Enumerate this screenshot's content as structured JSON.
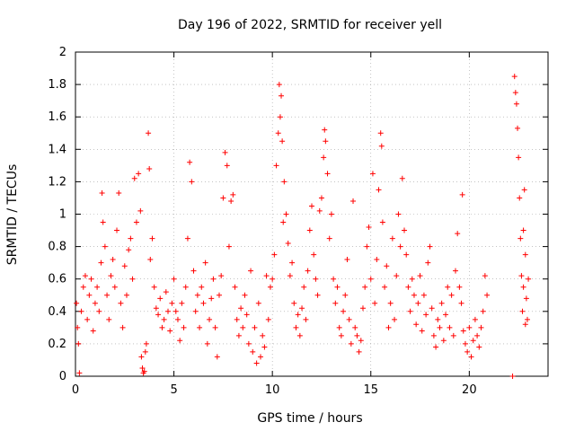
{
  "chart_data": {
    "type": "scatter",
    "title": "Day 196 of 2022, SRMTID for receiver yell",
    "xlabel": "GPS time / hours",
    "ylabel": "SRMTID / TECUs",
    "xlim": [
      0,
      24
    ],
    "ylim": [
      0,
      2
    ],
    "xticks": [
      0,
      5,
      10,
      15,
      20
    ],
    "yticks": [
      0,
      0.2,
      0.4,
      0.6,
      0.8,
      1,
      1.2,
      1.4,
      1.6,
      1.8,
      2
    ],
    "xtick_labels": [
      "0",
      "5",
      "10",
      "15",
      "20"
    ],
    "ytick_labels": [
      "0",
      "0.2",
      "0.4",
      "0.6",
      "0.8",
      "1",
      "1.2",
      "1.4",
      "1.6",
      "1.8",
      "2"
    ],
    "grid": true,
    "marker": "+",
    "series": [
      {
        "name": "SRMTID",
        "color": "#ff0000",
        "points": [
          [
            0.05,
            0.45
          ],
          [
            0.1,
            0.3
          ],
          [
            0.15,
            0.2
          ],
          [
            0.2,
            0.02
          ],
          [
            0.3,
            0.4
          ],
          [
            0.4,
            0.55
          ],
          [
            0.5,
            0.62
          ],
          [
            0.6,
            0.35
          ],
          [
            0.7,
            0.5
          ],
          [
            0.8,
            0.6
          ],
          [
            0.9,
            0.28
          ],
          [
            1.0,
            0.45
          ],
          [
            1.1,
            0.55
          ],
          [
            1.2,
            0.4
          ],
          [
            1.3,
            0.7
          ],
          [
            1.35,
            1.13
          ],
          [
            1.4,
            0.95
          ],
          [
            1.5,
            0.8
          ],
          [
            1.6,
            0.5
          ],
          [
            1.7,
            0.35
          ],
          [
            1.8,
            0.62
          ],
          [
            1.9,
            0.72
          ],
          [
            2.0,
            0.55
          ],
          [
            2.1,
            0.9
          ],
          [
            2.2,
            1.13
          ],
          [
            2.3,
            0.45
          ],
          [
            2.4,
            0.3
          ],
          [
            2.5,
            0.68
          ],
          [
            2.6,
            0.5
          ],
          [
            2.7,
            0.78
          ],
          [
            2.8,
            0.85
          ],
          [
            2.9,
            0.6
          ],
          [
            3.0,
            1.22
          ],
          [
            3.1,
            0.95
          ],
          [
            3.2,
            1.25
          ],
          [
            3.3,
            1.02
          ],
          [
            3.35,
            0.12
          ],
          [
            3.4,
            0.05
          ],
          [
            3.45,
            0.02
          ],
          [
            3.5,
            0.03
          ],
          [
            3.55,
            0.15
          ],
          [
            3.6,
            0.2
          ],
          [
            3.7,
            1.5
          ],
          [
            3.75,
            1.28
          ],
          [
            3.8,
            0.72
          ],
          [
            3.9,
            0.85
          ],
          [
            4.0,
            0.55
          ],
          [
            4.1,
            0.42
          ],
          [
            4.2,
            0.38
          ],
          [
            4.3,
            0.48
          ],
          [
            4.4,
            0.3
          ],
          [
            4.5,
            0.35
          ],
          [
            4.6,
            0.52
          ],
          [
            4.7,
            0.4
          ],
          [
            4.8,
            0.28
          ],
          [
            4.9,
            0.45
          ],
          [
            5.0,
            0.6
          ],
          [
            5.1,
            0.4
          ],
          [
            5.2,
            0.35
          ],
          [
            5.3,
            0.22
          ],
          [
            5.4,
            0.45
          ],
          [
            5.5,
            0.3
          ],
          [
            5.6,
            0.55
          ],
          [
            5.7,
            0.85
          ],
          [
            5.8,
            1.32
          ],
          [
            5.9,
            1.2
          ],
          [
            6.0,
            0.65
          ],
          [
            6.1,
            0.4
          ],
          [
            6.2,
            0.5
          ],
          [
            6.3,
            0.3
          ],
          [
            6.4,
            0.55
          ],
          [
            6.5,
            0.45
          ],
          [
            6.6,
            0.7
          ],
          [
            6.7,
            0.2
          ],
          [
            6.8,
            0.35
          ],
          [
            6.9,
            0.48
          ],
          [
            7.0,
            0.6
          ],
          [
            7.1,
            0.3
          ],
          [
            7.2,
            0.12
          ],
          [
            7.3,
            0.5
          ],
          [
            7.4,
            0.62
          ],
          [
            7.5,
            1.1
          ],
          [
            7.6,
            1.38
          ],
          [
            7.7,
            1.3
          ],
          [
            7.8,
            0.8
          ],
          [
            7.9,
            1.08
          ],
          [
            8.0,
            1.12
          ],
          [
            8.1,
            0.55
          ],
          [
            8.2,
            0.35
          ],
          [
            8.3,
            0.25
          ],
          [
            8.4,
            0.42
          ],
          [
            8.5,
            0.3
          ],
          [
            8.6,
            0.5
          ],
          [
            8.7,
            0.38
          ],
          [
            8.8,
            0.2
          ],
          [
            8.9,
            0.65
          ],
          [
            9.0,
            0.15
          ],
          [
            9.1,
            0.3
          ],
          [
            9.2,
            0.08
          ],
          [
            9.3,
            0.45
          ],
          [
            9.4,
            0.12
          ],
          [
            9.5,
            0.25
          ],
          [
            9.6,
            0.18
          ],
          [
            9.7,
            0.62
          ],
          [
            9.8,
            0.35
          ],
          [
            9.9,
            0.55
          ],
          [
            10.0,
            0.6
          ],
          [
            10.1,
            0.75
          ],
          [
            10.2,
            1.3
          ],
          [
            10.3,
            1.5
          ],
          [
            10.35,
            1.8
          ],
          [
            10.4,
            1.6
          ],
          [
            10.45,
            1.73
          ],
          [
            10.5,
            1.45
          ],
          [
            10.55,
            0.95
          ],
          [
            10.6,
            1.2
          ],
          [
            10.7,
            1.0
          ],
          [
            10.8,
            0.82
          ],
          [
            10.9,
            0.62
          ],
          [
            11.0,
            0.7
          ],
          [
            11.1,
            0.45
          ],
          [
            11.2,
            0.3
          ],
          [
            11.3,
            0.38
          ],
          [
            11.4,
            0.25
          ],
          [
            11.5,
            0.42
          ],
          [
            11.6,
            0.55
          ],
          [
            11.7,
            0.35
          ],
          [
            11.8,
            0.65
          ],
          [
            11.9,
            0.9
          ],
          [
            12.0,
            1.05
          ],
          [
            12.1,
            0.75
          ],
          [
            12.2,
            0.6
          ],
          [
            12.3,
            0.5
          ],
          [
            12.4,
            1.02
          ],
          [
            12.5,
            1.1
          ],
          [
            12.6,
            1.35
          ],
          [
            12.65,
            1.52
          ],
          [
            12.7,
            1.45
          ],
          [
            12.8,
            1.25
          ],
          [
            12.9,
            0.85
          ],
          [
            13.0,
            1.0
          ],
          [
            13.1,
            0.6
          ],
          [
            13.2,
            0.45
          ],
          [
            13.3,
            0.55
          ],
          [
            13.4,
            0.3
          ],
          [
            13.5,
            0.25
          ],
          [
            13.6,
            0.4
          ],
          [
            13.7,
            0.5
          ],
          [
            13.8,
            0.72
          ],
          [
            13.9,
            0.35
          ],
          [
            14.0,
            0.2
          ],
          [
            14.1,
            1.08
          ],
          [
            14.2,
            0.3
          ],
          [
            14.3,
            0.25
          ],
          [
            14.4,
            0.15
          ],
          [
            14.5,
            0.22
          ],
          [
            14.6,
            0.42
          ],
          [
            14.7,
            0.55
          ],
          [
            14.8,
            0.8
          ],
          [
            14.9,
            0.92
          ],
          [
            15.0,
            0.6
          ],
          [
            15.1,
            1.25
          ],
          [
            15.2,
            0.45
          ],
          [
            15.3,
            0.72
          ],
          [
            15.4,
            1.15
          ],
          [
            15.5,
            1.5
          ],
          [
            15.55,
            1.42
          ],
          [
            15.6,
            0.95
          ],
          [
            15.7,
            0.55
          ],
          [
            15.8,
            0.68
          ],
          [
            15.9,
            0.3
          ],
          [
            16.0,
            0.45
          ],
          [
            16.1,
            0.85
          ],
          [
            16.2,
            0.35
          ],
          [
            16.3,
            0.62
          ],
          [
            16.4,
            1.0
          ],
          [
            16.5,
            0.8
          ],
          [
            16.6,
            1.22
          ],
          [
            16.7,
            0.9
          ],
          [
            16.8,
            0.75
          ],
          [
            16.9,
            0.55
          ],
          [
            17.0,
            0.4
          ],
          [
            17.1,
            0.6
          ],
          [
            17.2,
            0.5
          ],
          [
            17.3,
            0.32
          ],
          [
            17.4,
            0.45
          ],
          [
            17.5,
            0.62
          ],
          [
            17.6,
            0.28
          ],
          [
            17.7,
            0.5
          ],
          [
            17.8,
            0.38
          ],
          [
            17.9,
            0.7
          ],
          [
            18.0,
            0.8
          ],
          [
            18.1,
            0.42
          ],
          [
            18.2,
            0.25
          ],
          [
            18.3,
            0.18
          ],
          [
            18.4,
            0.35
          ],
          [
            18.5,
            0.3
          ],
          [
            18.6,
            0.45
          ],
          [
            18.7,
            0.22
          ],
          [
            18.8,
            0.38
          ],
          [
            18.9,
            0.55
          ],
          [
            19.0,
            0.3
          ],
          [
            19.1,
            0.5
          ],
          [
            19.2,
            0.25
          ],
          [
            19.3,
            0.65
          ],
          [
            19.4,
            0.88
          ],
          [
            19.5,
            0.55
          ],
          [
            19.6,
            0.45
          ],
          [
            19.65,
            1.12
          ],
          [
            19.7,
            0.28
          ],
          [
            19.8,
            0.2
          ],
          [
            19.9,
            0.15
          ],
          [
            20.0,
            0.3
          ],
          [
            20.1,
            0.12
          ],
          [
            20.2,
            0.22
          ],
          [
            20.3,
            0.35
          ],
          [
            20.4,
            0.25
          ],
          [
            20.5,
            0.18
          ],
          [
            20.6,
            0.3
          ],
          [
            20.7,
            0.4
          ],
          [
            20.8,
            0.62
          ],
          [
            20.9,
            0.5
          ],
          [
            22.2,
            0.0
          ],
          [
            22.3,
            1.85
          ],
          [
            22.35,
            1.75
          ],
          [
            22.4,
            1.68
          ],
          [
            22.45,
            1.53
          ],
          [
            22.5,
            1.35
          ],
          [
            22.55,
            1.1
          ],
          [
            22.6,
            0.85
          ],
          [
            22.65,
            0.62
          ],
          [
            22.7,
            0.4
          ],
          [
            22.75,
            0.55
          ],
          [
            22.8,
            1.15
          ],
          [
            22.85,
            0.75
          ],
          [
            22.9,
            0.48
          ],
          [
            22.95,
            0.35
          ],
          [
            23.0,
            0.6
          ],
          [
            22.75,
            0.9
          ],
          [
            22.85,
            0.32
          ]
        ]
      }
    ]
  }
}
